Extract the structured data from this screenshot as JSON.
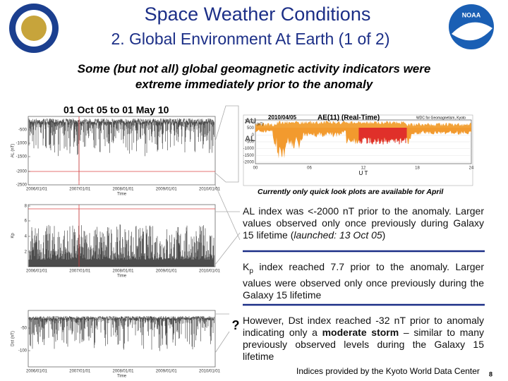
{
  "header": {
    "title": "Space Weather Conditions",
    "subtitle": "2. Global Environment At Earth (1 of 2)",
    "noaa_logo": "NOAA"
  },
  "headline": [
    "Some (but not all) global geomagnetic activity indicators were",
    "extreme immediately prior to the anomaly"
  ],
  "period": "01 Oct 05 to 01 May 10",
  "al_plot": {
    "ylabel": "AL (nT)",
    "yticks": [
      "-500",
      "-1000",
      "-1500",
      "-2000",
      "-2500"
    ],
    "xticks": [
      "2006/01/01",
      "2007/01/01",
      "2008/01/01",
      "2009/01/01",
      "2010/01/01"
    ],
    "xlabel": "Time"
  },
  "kp_plot": {
    "ylabel": "Kp",
    "yticks": [
      "8",
      "6",
      "4",
      "2"
    ],
    "xticks": [
      "2006/01/01",
      "2007/01/01",
      "2008/01/01",
      "2009/01/01",
      "2010/01/01"
    ],
    "xlabel": "Time"
  },
  "dst_plot": {
    "ylabel": "Dst (nT)",
    "yticks": [
      "-50",
      "-100"
    ],
    "xticks": [
      "2006/01/01",
      "2007/01/01",
      "2008/01/01",
      "2009/01/01",
      "2010/01/01"
    ],
    "xlabel": "Time"
  },
  "ae_plot": {
    "date": "2010/04/05",
    "title": "AE(11) (Real-Time)",
    "source": "WDC for Geomagnetism, Kyoto",
    "unit": "(nT)",
    "au": "AU",
    "al": "AL",
    "yticks": [
      "1000",
      "500",
      "0",
      "-500",
      "-1000",
      "-1500",
      "-2000"
    ],
    "xticks": [
      "00",
      "06",
      "12",
      "18",
      "24"
    ],
    "xlabel": "U T",
    "caption": "Currently only quick look plots are available for April"
  },
  "notes": [
    {
      "parts": [
        "AL index was <-2000 nT prior to the anomaly. Larger values observed only once previously during Galaxy 15 lifetime (",
        "launched: 13 Oct 05",
        ")"
      ]
    },
    {
      "parts": [
        "K",
        "p",
        " index reached 7.7 prior to the anomaly. Larger values were observed only once previously during the Galaxy 15 lifetime"
      ]
    },
    {
      "mark": "?",
      "parts": [
        "However, Dst index reached -32 nT  prior to anomaly indicating only a ",
        "moderate storm",
        " – similar to many previously observed levels during the Galaxy 15 lifetime"
      ]
    }
  ],
  "footer": {
    "credit": "Indices provided by the Kyoto World Data Center",
    "page": "8"
  }
}
